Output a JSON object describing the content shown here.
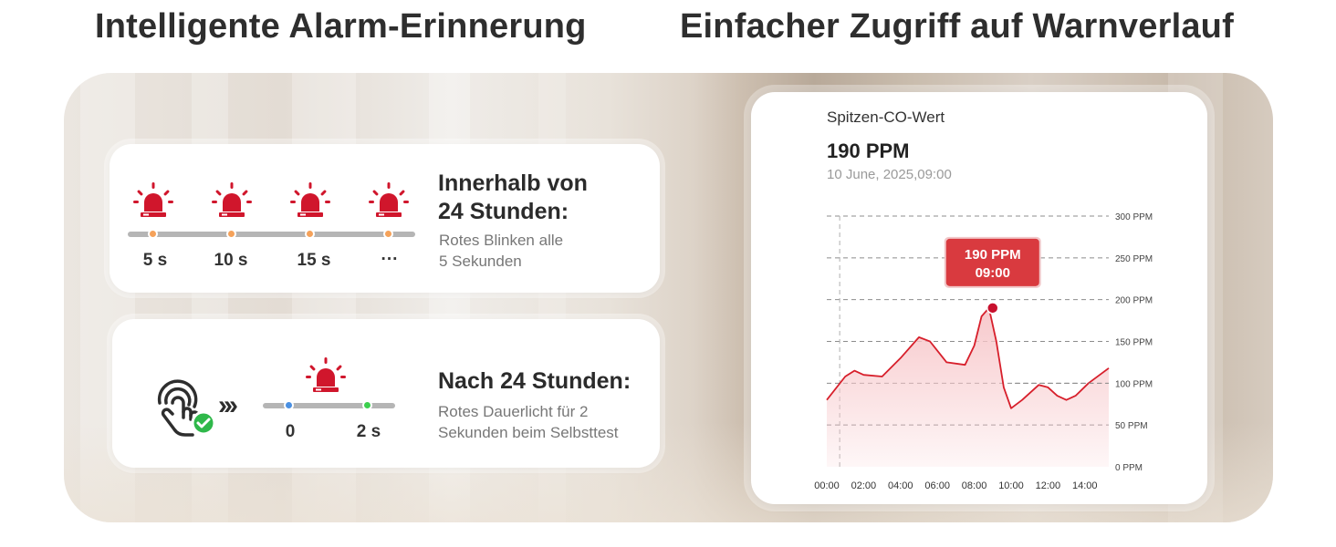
{
  "headings": {
    "left": "Intelligente Alarm-Erinnerung",
    "right": "Einfacher Zugriff auf Warnverlauf"
  },
  "card1": {
    "title_line1": "Innerhalb von",
    "title_line2": "24 Stunden:",
    "desc_line1": "Rotes Blinken alle",
    "desc_line2": "5 Sekunden",
    "ticks": [
      "5 s",
      "10 s",
      "15 s",
      "···"
    ],
    "dot_color": "#f5a25a"
  },
  "card2": {
    "title": "Nach 24 Stunden:",
    "desc_line1": "Rotes Dauerlicht für 2",
    "desc_line2": "Sekunden beim Selbsttest",
    "arrows": "›››",
    "ticks": [
      "0",
      "2 s"
    ],
    "dot_start_color": "#4a90e2",
    "dot_end_color": "#3ccf4e"
  },
  "chart_panel": {
    "title": "Spitzen-CO-Wert",
    "value": "190 PPM",
    "date": "10 June, 2025,09:00",
    "tooltip_line1": "190 PPM",
    "tooltip_line2": "09:00"
  },
  "chart_data": {
    "type": "area",
    "title": "",
    "xlabel": "",
    "ylabel": "",
    "x_ticks": [
      "00:00",
      "02:00",
      "04:00",
      "06:00",
      "08:00",
      "10:00",
      "12:00",
      "14:00"
    ],
    "y_ticks": [
      "0 PPM",
      "50 PPM",
      "100 PPM",
      "150 PPM",
      "200 PPM",
      "250 PPM",
      "300 PPM"
    ],
    "ylim": [
      0,
      300
    ],
    "xlim_hours": [
      0,
      15.3
    ],
    "grid": "horizontal dashed",
    "series": [
      {
        "x": [
          0,
          1,
          1.5,
          2,
          3,
          4,
          5,
          5.6,
          6.5,
          7.5,
          8,
          8.4,
          8.8,
          9.2,
          9.6,
          10,
          10.6,
          11.5,
          12,
          12.5,
          13,
          13.5,
          14.2,
          15.3
        ],
        "y": [
          80,
          108,
          115,
          110,
          108,
          130,
          155,
          150,
          125,
          122,
          145,
          180,
          190,
          150,
          95,
          70,
          80,
          98,
          95,
          85,
          80,
          85,
          100,
          118
        ]
      }
    ],
    "highlight": {
      "x": 9,
      "y": 190
    },
    "reference_lines": [
      {
        "y": 100,
        "from_x": 10.2
      }
    ],
    "vertical_line_x": 0.7,
    "colors": {
      "line": "#d71f2b",
      "fill": "#f7c6c9",
      "tooltip": "#d93a3f",
      "grid": "#8c8c8c"
    }
  }
}
